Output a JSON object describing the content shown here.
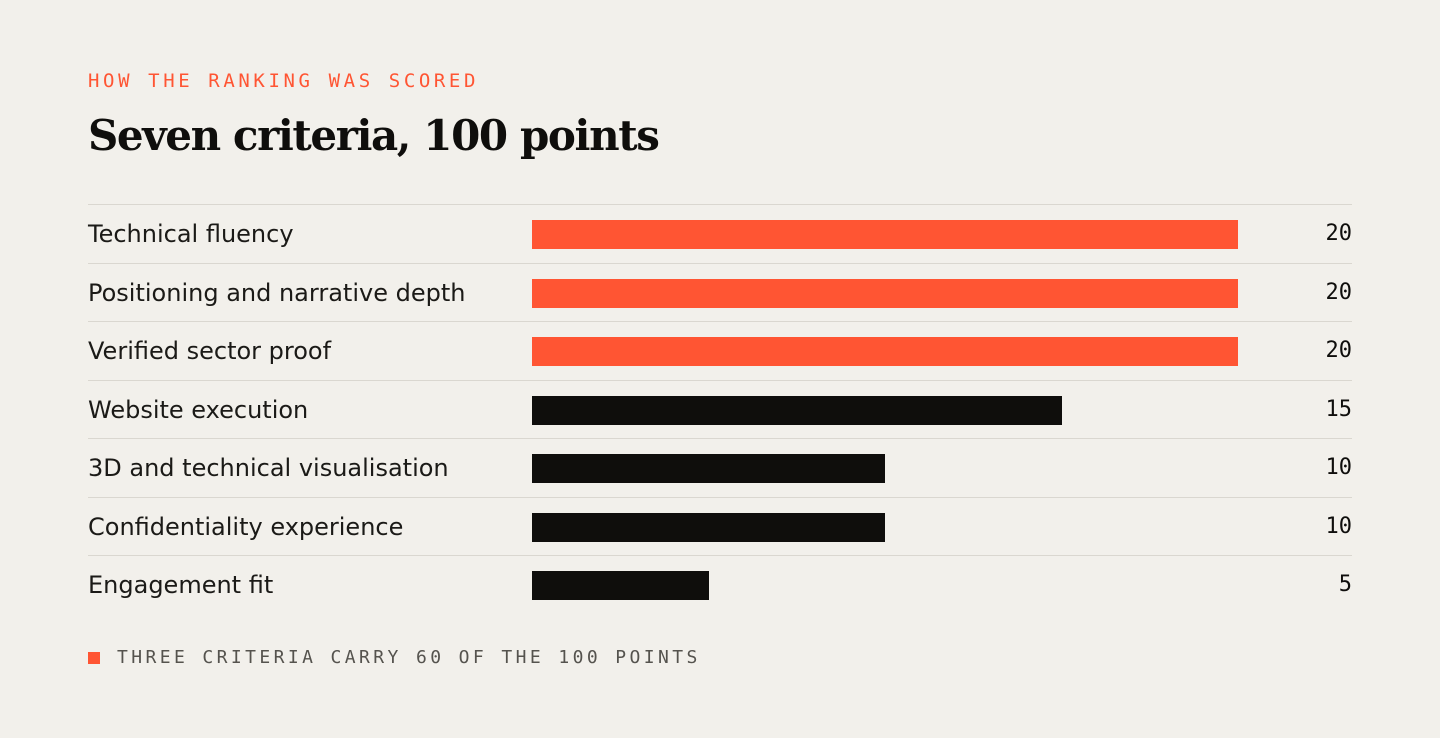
{
  "eyebrow": "HOW THE RANKING WAS SCORED",
  "title": "Seven criteria, 100 points",
  "footnote": "THREE CRITERIA CARRY 60 OF THE 100 POINTS",
  "colors": {
    "accent": "#ff5533",
    "ink": "#0f0e0c",
    "background": "#f2f0eb",
    "rule": "#dad7d0"
  },
  "chart_data": {
    "type": "bar",
    "orientation": "horizontal",
    "categories": [
      "Technical fluency",
      "Positioning and narrative depth",
      "Verified sector proof",
      "Website execution",
      "3D and technical visualisation",
      "Confidentiality experience",
      "Engagement fit"
    ],
    "values": [
      20,
      20,
      20,
      15,
      10,
      10,
      5
    ],
    "highlighted": [
      true,
      true,
      true,
      false,
      false,
      false,
      false
    ],
    "xlim": [
      0,
      20
    ],
    "grid": false,
    "legend": "bottom-left"
  }
}
